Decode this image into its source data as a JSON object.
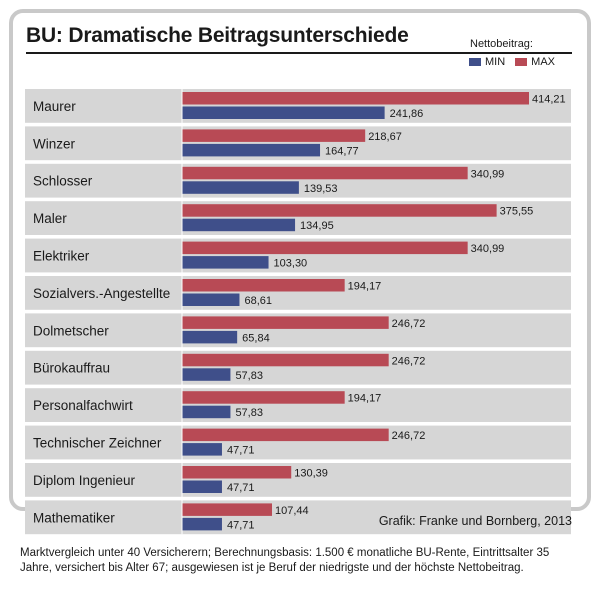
{
  "chart_data": {
    "type": "bar",
    "orientation": "horizontal",
    "title": "BU: Dramatische Beitragsunterschiede",
    "legend_title": "Nettobeitrag:",
    "categories": [
      "Maurer",
      "Winzer",
      "Schlosser",
      "Maler",
      "Elektriker",
      "Sozialvers.-Angestellte",
      "Dolmetscher",
      "Bürokauffrau",
      "Personalfachwirt",
      "Technischer Zeichner",
      "Diplom Ingenieur",
      "Mathematiker"
    ],
    "series": [
      {
        "name": "MAX",
        "color": "#b84a55",
        "values": [
          414.21,
          218.67,
          340.99,
          375.55,
          340.99,
          194.17,
          246.72,
          246.72,
          194.17,
          246.72,
          130.39,
          107.44
        ],
        "labels": [
          "414,21",
          "218,67",
          "340,99",
          "375,55",
          "340,99",
          "194,17",
          "246,72",
          "246,72",
          "194,17",
          "246,72",
          "130,39",
          "107,44"
        ]
      },
      {
        "name": "MIN",
        "color": "#3f4f8a",
        "values": [
          241.86,
          164.77,
          139.53,
          134.95,
          103.3,
          68.61,
          65.84,
          57.83,
          57.83,
          47.71,
          47.71,
          47.71
        ],
        "labels": [
          "241,86",
          "164,77",
          "139,53",
          "134,95",
          "103,30",
          "68,61",
          "65,84",
          "57,83",
          "57,83",
          "47,71",
          "47,71",
          "47,71"
        ]
      }
    ],
    "legend_order": [
      "MIN",
      "MAX"
    ],
    "legend_position": "top-right",
    "grid": false,
    "xlim": [
      0,
      430
    ]
  },
  "source": "Grafik: Franke und Bornberg, 2013",
  "footnote": "Marktvergleich unter 40 Versicherern; Berechnungsbasis: 1.500 € monatliche BU-Rente, Eintrittsalter  35 Jahre, versichert bis Alter 67; ausgewiesen ist je Beruf der niedrigste und der höchste Nettobeitrag.",
  "colors": {
    "row_band": "#d6d6d6",
    "max": "#b84a55",
    "min": "#3f4f8a"
  }
}
